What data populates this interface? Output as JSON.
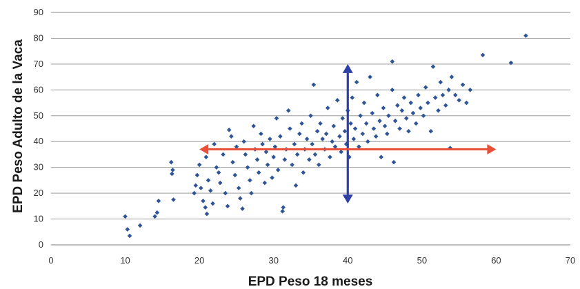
{
  "chart_data": {
    "type": "scatter",
    "title": "",
    "xlabel": "EPD Peso 18 meses",
    "ylabel": "EPD Peso Adulto de la Vaca",
    "xlim": [
      0,
      70
    ],
    "ylim": [
      0,
      90
    ],
    "x_ticks": [
      "0",
      "10",
      "20",
      "30",
      "40",
      "50",
      "60",
      "70"
    ],
    "y_ticks": [
      "0",
      "10",
      "20",
      "30",
      "40",
      "50",
      "60",
      "70",
      "80",
      "90"
    ],
    "grid": "horizontal",
    "legend": "none",
    "marker": "diamond",
    "series": [
      {
        "color": "#2f5597",
        "points": [
          [
            10.0,
            11.0
          ],
          [
            10.3,
            6.0
          ],
          [
            10.6,
            3.5
          ],
          [
            12.0,
            7.5
          ],
          [
            14.0,
            11.0
          ],
          [
            14.3,
            12.5
          ],
          [
            14.5,
            17.0
          ],
          [
            16.2,
            32.0
          ],
          [
            16.3,
            27.5
          ],
          [
            16.5,
            17.5
          ],
          [
            16.4,
            29.0
          ],
          [
            19.3,
            20.0
          ],
          [
            19.5,
            23.0
          ],
          [
            19.7,
            27.0
          ],
          [
            20.0,
            31.0
          ],
          [
            20.2,
            22.0
          ],
          [
            20.5,
            17.0
          ],
          [
            20.8,
            14.5
          ],
          [
            21.0,
            12.0
          ],
          [
            20.6,
            37.0
          ],
          [
            20.9,
            34.0
          ],
          [
            21.2,
            25.0
          ],
          [
            21.5,
            21.0
          ],
          [
            21.8,
            16.0
          ],
          [
            22.0,
            39.0
          ],
          [
            22.3,
            30.0
          ],
          [
            22.6,
            28.0
          ],
          [
            22.8,
            24.0
          ],
          [
            23.2,
            35.0
          ],
          [
            23.5,
            20.0
          ],
          [
            23.8,
            15.0
          ],
          [
            24.0,
            44.5
          ],
          [
            24.3,
            42.0
          ],
          [
            24.5,
            32.0
          ],
          [
            24.8,
            27.0
          ],
          [
            25.0,
            38.0
          ],
          [
            25.3,
            22.0
          ],
          [
            25.5,
            18.0
          ],
          [
            25.8,
            14.0
          ],
          [
            26.0,
            40.0
          ],
          [
            26.2,
            35.0
          ],
          [
            26.5,
            30.0
          ],
          [
            26.8,
            25.0
          ],
          [
            27.0,
            20.0
          ],
          [
            27.3,
            46.0
          ],
          [
            27.5,
            37.0
          ],
          [
            27.8,
            33.0
          ],
          [
            28.0,
            28.0
          ],
          [
            28.3,
            43.0
          ],
          [
            28.5,
            39.0
          ],
          [
            28.8,
            24.0
          ],
          [
            29.0,
            36.0
          ],
          [
            29.2,
            31.0
          ],
          [
            29.5,
            41.0
          ],
          [
            29.8,
            26.0
          ],
          [
            30.0,
            34.0
          ],
          [
            30.2,
            38.0
          ],
          [
            30.4,
            49.0
          ],
          [
            30.6,
            29.0
          ],
          [
            30.9,
            42.0
          ],
          [
            31.2,
            13.0
          ],
          [
            31.3,
            14.5
          ],
          [
            31.5,
            33.0
          ],
          [
            31.7,
            37.0
          ],
          [
            32.0,
            52.0
          ],
          [
            32.2,
            45.0
          ],
          [
            32.5,
            31.0
          ],
          [
            32.8,
            39.0
          ],
          [
            33.0,
            23.0
          ],
          [
            33.2,
            35.0
          ],
          [
            33.5,
            43.0
          ],
          [
            33.8,
            47.0
          ],
          [
            34.0,
            28.0
          ],
          [
            34.2,
            37.0
          ],
          [
            34.5,
            41.0
          ],
          [
            34.8,
            33.0
          ],
          [
            35.0,
            50.0
          ],
          [
            35.2,
            39.0
          ],
          [
            35.4,
            62.0
          ],
          [
            35.6,
            35.0
          ],
          [
            35.9,
            44.0
          ],
          [
            36.1,
            31.0
          ],
          [
            36.3,
            47.0
          ],
          [
            36.6,
            41.0
          ],
          [
            36.9,
            37.0
          ],
          [
            37.1,
            43.0
          ],
          [
            37.3,
            53.0
          ],
          [
            37.6,
            34.0
          ],
          [
            37.9,
            40.0
          ],
          [
            38.1,
            46.0
          ],
          [
            38.3,
            38.0
          ],
          [
            38.6,
            56.0
          ],
          [
            38.9,
            42.0
          ],
          [
            39.1,
            36.0
          ],
          [
            39.3,
            49.0
          ],
          [
            39.6,
            44.0
          ],
          [
            39.8,
            39.0
          ],
          [
            40.0,
            52.0
          ],
          [
            40.2,
            34.0
          ],
          [
            40.4,
            47.0
          ],
          [
            40.6,
            57.0
          ],
          [
            40.8,
            41.0
          ],
          [
            41.0,
            45.0
          ],
          [
            41.2,
            63.0
          ],
          [
            41.5,
            38.0
          ],
          [
            41.7,
            50.0
          ],
          [
            42.0,
            43.0
          ],
          [
            42.2,
            55.0
          ],
          [
            42.5,
            47.0
          ],
          [
            42.7,
            40.0
          ],
          [
            43.0,
            65.0
          ],
          [
            43.3,
            51.0
          ],
          [
            43.5,
            45.0
          ],
          [
            43.8,
            42.0
          ],
          [
            44.0,
            58.0
          ],
          [
            44.3,
            48.0
          ],
          [
            44.5,
            34.0
          ],
          [
            44.8,
            53.0
          ],
          [
            45.0,
            46.0
          ],
          [
            45.3,
            43.0
          ],
          [
            45.5,
            50.0
          ],
          [
            46.0,
            71.0
          ],
          [
            46.0,
            60.0
          ],
          [
            46.2,
            32.0
          ],
          [
            46.4,
            48.0
          ],
          [
            46.7,
            54.0
          ],
          [
            47.0,
            45.0
          ],
          [
            47.3,
            52.0
          ],
          [
            47.6,
            57.0
          ],
          [
            47.9,
            49.0
          ],
          [
            48.2,
            44.0
          ],
          [
            48.5,
            55.0
          ],
          [
            48.8,
            51.0
          ],
          [
            49.2,
            47.0
          ],
          [
            49.5,
            58.0
          ],
          [
            49.8,
            53.0
          ],
          [
            50.2,
            50.0
          ],
          [
            50.5,
            61.0
          ],
          [
            50.8,
            55.0
          ],
          [
            51.2,
            44.0
          ],
          [
            51.5,
            69.0
          ],
          [
            51.8,
            57.0
          ],
          [
            52.2,
            52.0
          ],
          [
            52.5,
            63.0
          ],
          [
            52.8,
            58.0
          ],
          [
            53.2,
            54.0
          ],
          [
            53.6,
            60.0
          ],
          [
            53.8,
            37.5
          ],
          [
            54.0,
            65.0
          ],
          [
            54.5,
            58.0
          ],
          [
            55.0,
            56.0
          ],
          [
            55.5,
            62.0
          ],
          [
            56.0,
            55.0
          ],
          [
            56.5,
            60.0
          ],
          [
            58.2,
            73.5
          ],
          [
            62.0,
            70.5
          ],
          [
            64.0,
            81.0
          ]
        ]
      }
    ],
    "annotations": [
      {
        "type": "arrow",
        "direction": "vertical",
        "color": "#2e3fa5",
        "x": 40,
        "y_from": 16,
        "y_to": 70
      },
      {
        "type": "arrow",
        "direction": "horizontal",
        "color": "#e8503a",
        "y": 37,
        "x_from": 20,
        "x_to": 60
      }
    ]
  }
}
